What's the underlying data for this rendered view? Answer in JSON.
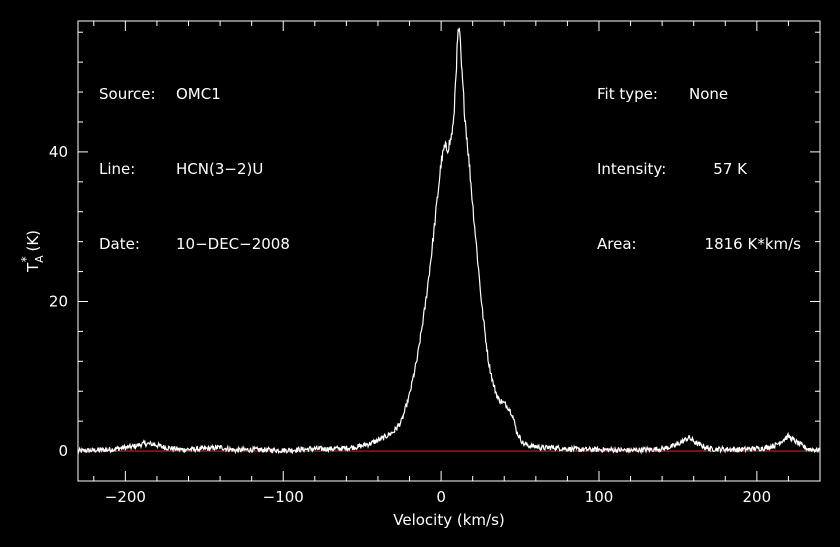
{
  "info_left": [
    {
      "key": "Source:",
      "value": "OMC1"
    },
    {
      "key": "Line:",
      "value": "HCN(3−2)U"
    },
    {
      "key": "Date:",
      "value": "10−DEC−2008"
    }
  ],
  "info_right": [
    {
      "key": "Fit type:",
      "value": "None"
    },
    {
      "key": "Intensity:",
      "value": "57 K"
    },
    {
      "key": "Area:",
      "value": "1816 K*km/s"
    }
  ],
  "colors": {
    "background": "#000000",
    "foreground": "#ffffff",
    "baseline": "#cc2222"
  },
  "chart_data": {
    "type": "line",
    "xlabel": "Velocity (km/s)",
    "ylabel_main": "T",
    "ylabel_sup": "*",
    "ylabel_sub": "A",
    "ylabel_unit": " (K)",
    "xlim": [
      -230,
      240
    ],
    "ylim": [
      -4,
      57.5
    ],
    "xticks": [
      -200,
      -100,
      0,
      100,
      200
    ],
    "xtick_labels": [
      "−200",
      "−100",
      "0",
      "100",
      "200"
    ],
    "yticks": [
      0,
      20,
      40
    ],
    "ytick_labels": [
      "0",
      "20",
      "40"
    ],
    "baseline_y": 0,
    "series": [
      {
        "x": [
          -230,
          -210,
          -195,
          -188,
          -182,
          -175,
          -165,
          -150,
          -140,
          -130,
          -120,
          -100,
          -80,
          -70,
          -60,
          -52,
          -45,
          -38,
          -30,
          -25,
          -20,
          -15,
          -10,
          -6,
          -3,
          0,
          2,
          4,
          6,
          8,
          9,
          10,
          11,
          12,
          13,
          15,
          18,
          20,
          23,
          26,
          30,
          33,
          36,
          39,
          42,
          45,
          48,
          52,
          56,
          60,
          65,
          70,
          80,
          90,
          100,
          120,
          140,
          148,
          153,
          157,
          162,
          170,
          190,
          205,
          212,
          216,
          220,
          225,
          232,
          240
        ],
        "y": [
          0,
          0.2,
          0.6,
          1.0,
          0.9,
          0.5,
          0.2,
          0.3,
          0.5,
          0.1,
          0.2,
          0.1,
          0.3,
          0.3,
          0.4,
          0.6,
          1.0,
          1.6,
          2.6,
          4.0,
          7.5,
          12.5,
          19.5,
          26.5,
          32.5,
          38.5,
          40.5,
          40.5,
          41.5,
          44,
          49,
          53,
          56.5,
          55,
          51,
          45,
          38,
          33,
          26,
          19,
          12,
          9,
          7,
          6.5,
          6,
          5,
          2.5,
          1.0,
          0.7,
          0.6,
          0.4,
          0.5,
          0.3,
          0.2,
          0.2,
          0.1,
          0.3,
          0.7,
          1.3,
          1.8,
          1.0,
          0.3,
          0.2,
          0.4,
          0.8,
          1.4,
          2.0,
          1.2,
          0.3,
          0.1
        ]
      }
    ]
  }
}
